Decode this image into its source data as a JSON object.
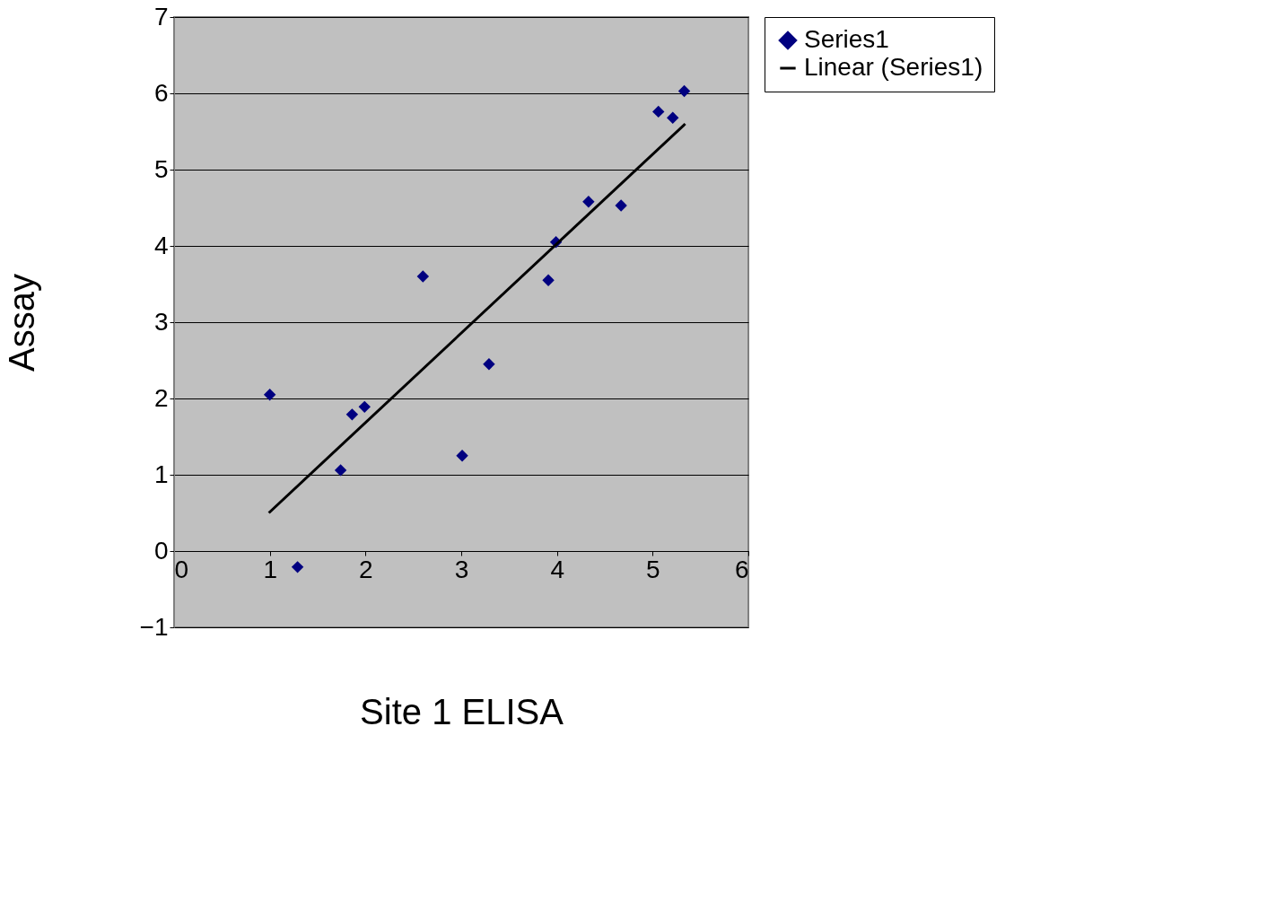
{
  "chart_data": {
    "type": "scatter",
    "xlabel": "Site 1 ELISA",
    "ylabel": "Assay",
    "xlim": [
      0,
      6
    ],
    "xticks": [
      0,
      1,
      2,
      3,
      4,
      5,
      6
    ],
    "ylim": [
      -1,
      7
    ],
    "yticks": [
      -1,
      0,
      1,
      2,
      3,
      4,
      5,
      6,
      7
    ],
    "grid": "y",
    "legend": "right",
    "series": [
      {
        "name": "Series1",
        "marker": "diamond",
        "color": "#000080",
        "x": [
          1.0,
          1.29,
          1.74,
          1.86,
          1.99,
          2.6,
          3.01,
          3.29,
          3.91,
          3.99,
          4.33,
          4.67,
          5.06,
          5.21,
          5.33
        ],
        "values": [
          2.05,
          -0.21,
          1.06,
          1.79,
          1.89,
          3.6,
          1.25,
          2.45,
          3.55,
          4.05,
          4.58,
          4.53,
          5.76,
          5.68,
          6.03
        ]
      },
      {
        "name": "Linear (Series1)",
        "type": "line",
        "marker": "none",
        "color": "#000000",
        "x": [
          0.99,
          5.34
        ],
        "values": [
          0.5,
          5.6
        ]
      }
    ]
  }
}
